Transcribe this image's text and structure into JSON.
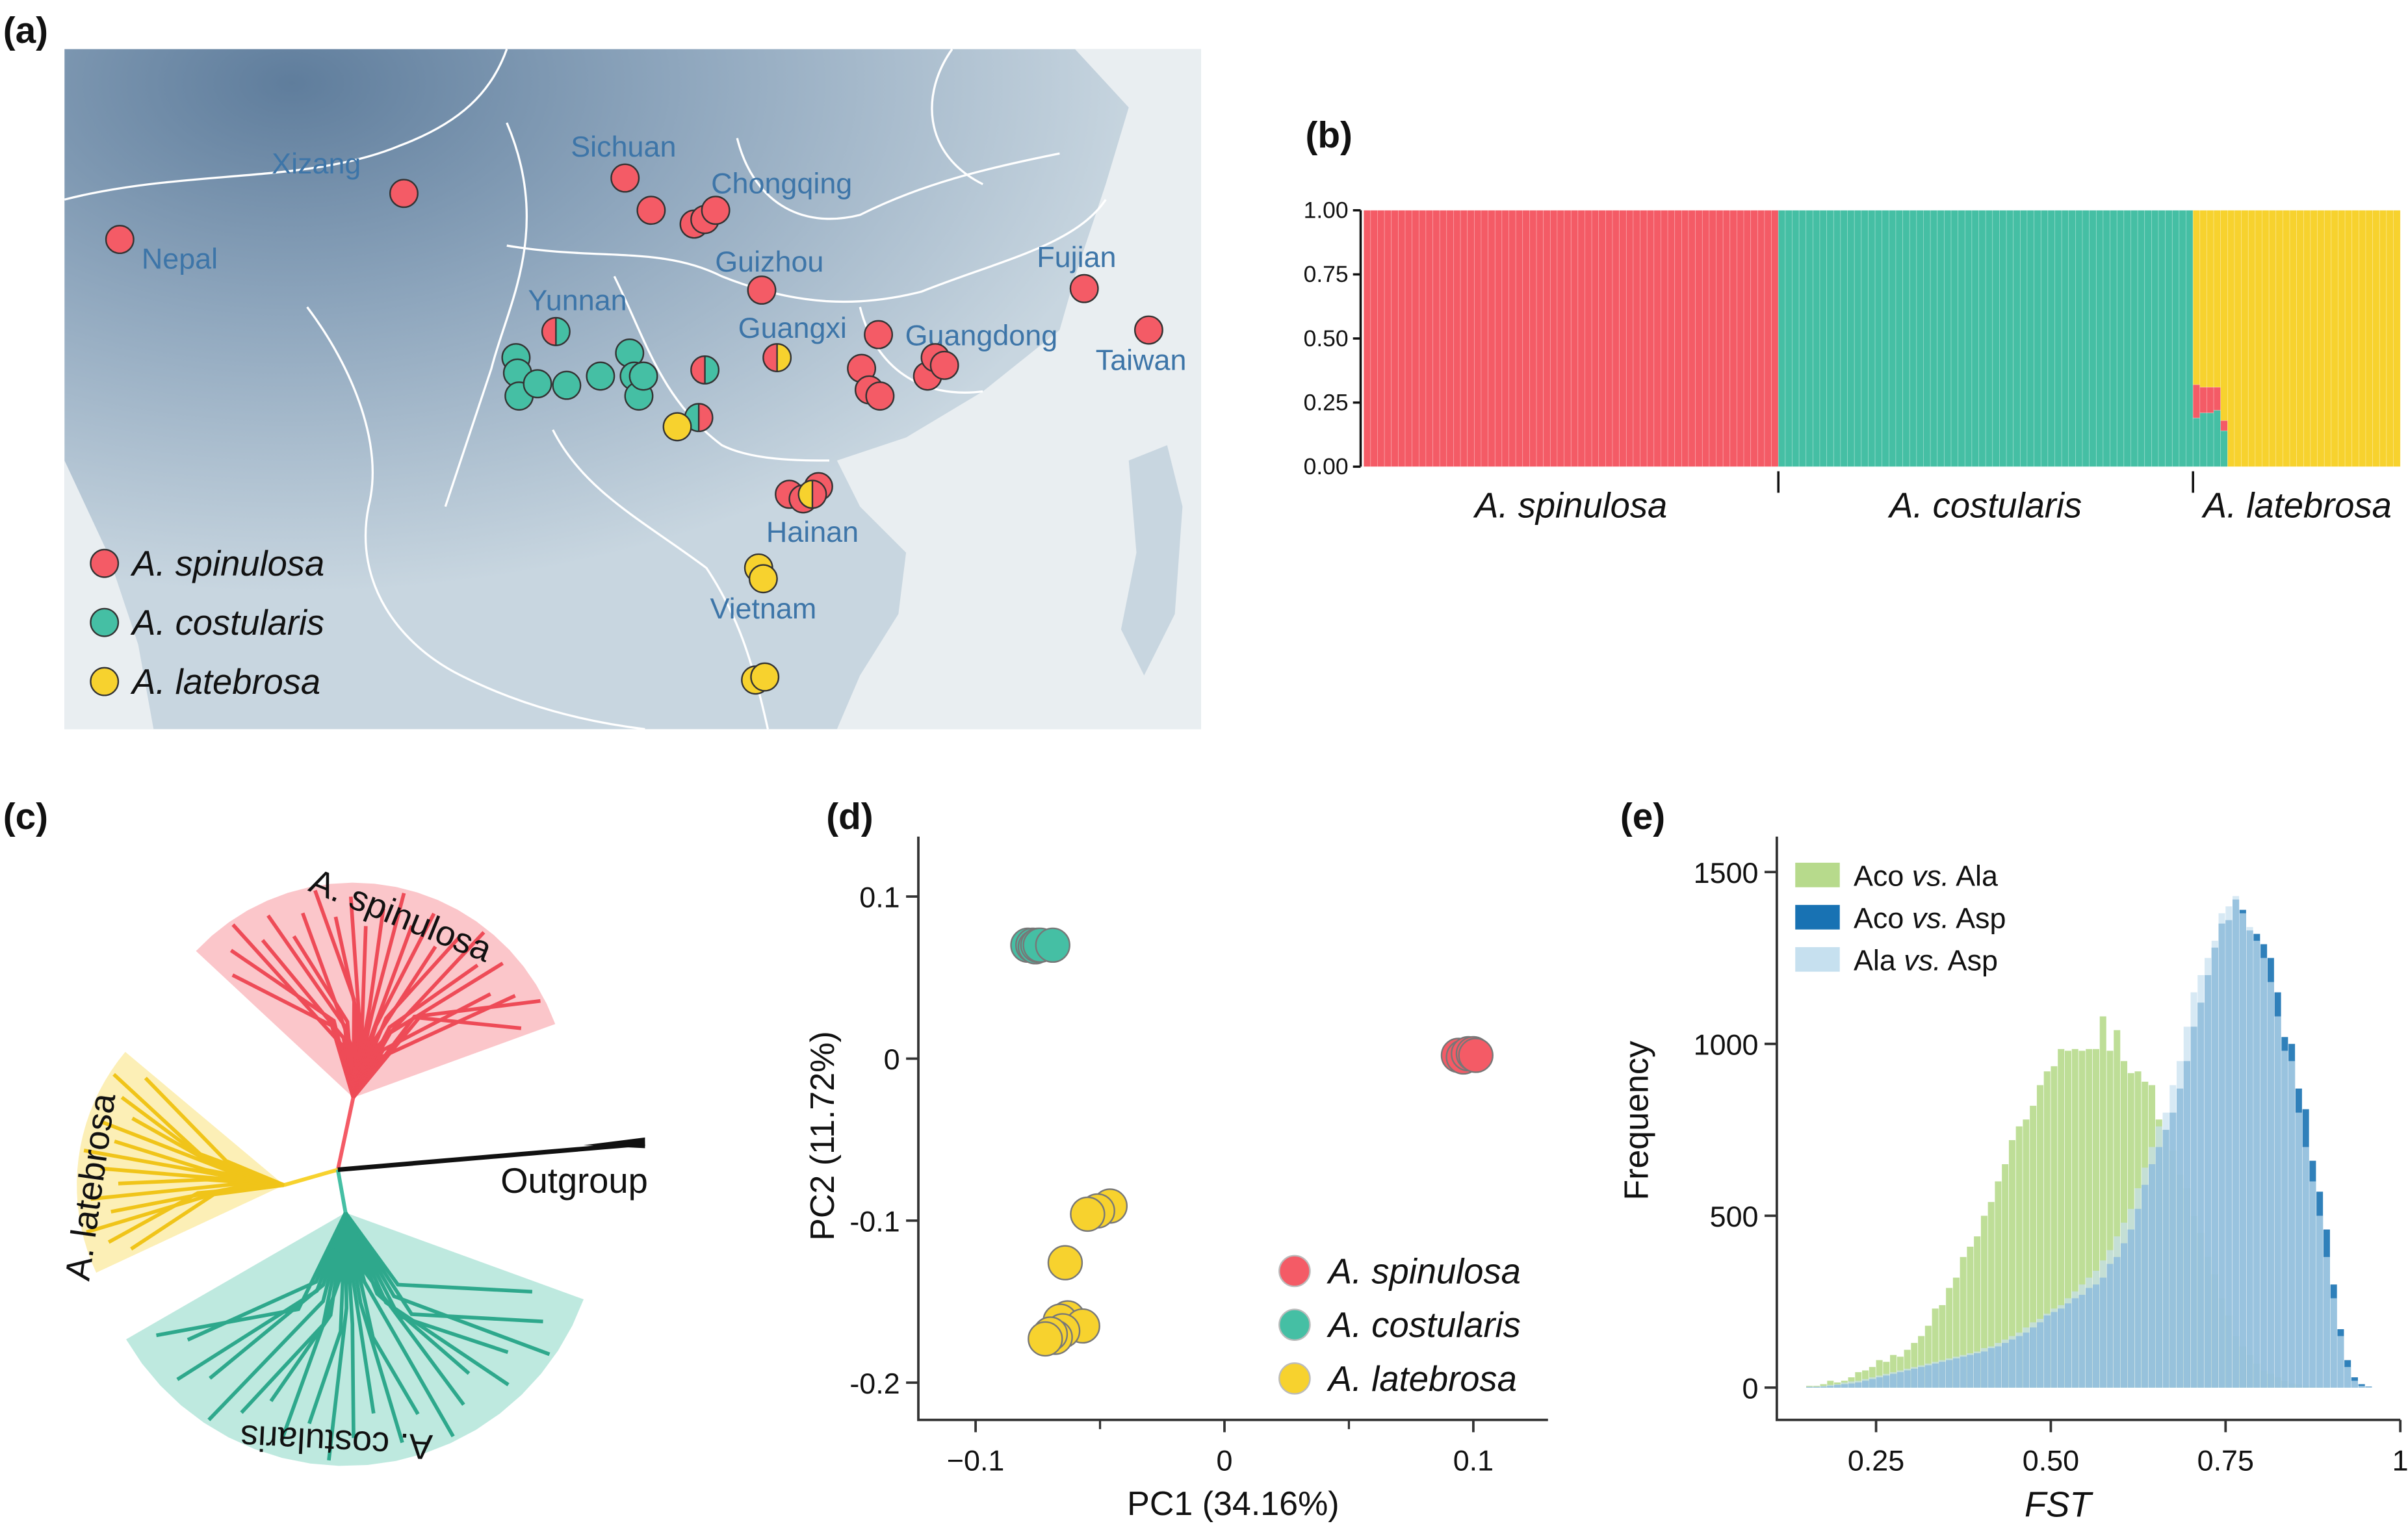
{
  "panel_labels": [
    "(a)",
    "(b)",
    "(c)",
    "(d)",
    "(e)"
  ],
  "colors": {
    "spinulosa": "#f45b66",
    "costularis": "#45bfa4",
    "latebrosa": "#f7d22e",
    "region_label": "#3d75a8"
  },
  "species": [
    "A. spinulosa",
    "A. costularis",
    "A. latebrosa"
  ],
  "map": {
    "regions": [
      "Xizang",
      "Nepal",
      "Sichuan",
      "Chongqing",
      "Guizhou",
      "Yunnan",
      "Guangxi",
      "Guangdong",
      "Fujian",
      "Taiwan",
      "Hainan",
      "Vietnam"
    ],
    "legend": [
      "A. spinulosa",
      "A. costularis",
      "A. latebrosa"
    ]
  },
  "tree": {
    "clades": [
      "A. spinulosa",
      "A. latebrosa",
      "A. costularis"
    ],
    "outgroup": "Outgroup"
  },
  "chart_data": [
    {
      "panel": "(b)",
      "type": "bar",
      "stacked": true,
      "ylim": [
        0,
        1
      ],
      "yticks": [
        "0.00",
        "0.25",
        "0.50",
        "0.75",
        "1.00"
      ],
      "groups": [
        {
          "name": "A. spinulosa",
          "n": 60,
          "cluster": "spinulosa"
        },
        {
          "name": "A. costularis",
          "n": 60,
          "cluster": "costularis"
        },
        {
          "name": "A. latebrosa",
          "n": 30,
          "cluster": "latebrosa"
        }
      ],
      "admixed": [
        {
          "group": "A. latebrosa",
          "index": 0,
          "costularis": 0.19,
          "spinulosa": 0.13,
          "latebrosa": 0.68
        },
        {
          "group": "A. latebrosa",
          "index": 1,
          "costularis": 0.21,
          "spinulosa": 0.1,
          "latebrosa": 0.69
        },
        {
          "group": "A. latebrosa",
          "index": 2,
          "costularis": 0.21,
          "spinulosa": 0.1,
          "latebrosa": 0.69
        },
        {
          "group": "A. latebrosa",
          "index": 3,
          "costularis": 0.22,
          "spinulosa": 0.09,
          "latebrosa": 0.69
        },
        {
          "group": "A. latebrosa",
          "index": 4,
          "costularis": 0.14,
          "spinulosa": 0.04,
          "latebrosa": 0.82
        }
      ]
    },
    {
      "panel": "(d)",
      "type": "scatter",
      "xlabel": "PC1 (34.16%)",
      "ylabel": "PC2 (11.72%)",
      "xlim": [
        -0.123,
        0.13
      ],
      "ylim": [
        -0.223,
        0.137
      ],
      "xticks": [
        "−0.1",
        "0",
        "0.1"
      ],
      "xtick_values": [
        -0.1,
        0,
        0.1
      ],
      "yticks": [
        "0.1",
        "0",
        "-0.1",
        "-0.2"
      ],
      "ytick_values": [
        0.1,
        0,
        -0.1,
        -0.2
      ],
      "legend_position": "bottom-right",
      "series": [
        {
          "name": "A. spinulosa",
          "points": [
            [
              0.094,
              0.002
            ],
            [
              0.096,
              0.001
            ],
            [
              0.098,
              0.003
            ],
            [
              0.1,
              0.003
            ],
            [
              0.101,
              0.002
            ]
          ]
        },
        {
          "name": "A. costularis",
          "points": [
            [
              -0.079,
              0.07
            ],
            [
              -0.077,
              0.07
            ],
            [
              -0.076,
              0.069
            ],
            [
              -0.075,
              0.07
            ],
            [
              -0.074,
              0.07
            ],
            [
              -0.069,
              0.07
            ]
          ]
        },
        {
          "name": "A. latebrosa",
          "points": [
            [
              -0.046,
              -0.091
            ],
            [
              -0.051,
              -0.094
            ],
            [
              -0.055,
              -0.096
            ],
            [
              -0.064,
              -0.126
            ],
            [
              -0.063,
              -0.16
            ],
            [
              -0.066,
              -0.162
            ],
            [
              -0.057,
              -0.165
            ],
            [
              -0.065,
              -0.168
            ],
            [
              -0.068,
              -0.172
            ],
            [
              -0.07,
              -0.17
            ],
            [
              -0.072,
              -0.173
            ]
          ]
        }
      ]
    },
    {
      "panel": "(e)",
      "type": "bar",
      "subtype": "overlaid-histogram",
      "xlabel": "FST",
      "ylabel": "Frequency",
      "xlim": [
        0.108,
        1.0
      ],
      "ylim": [
        -94,
        1603
      ],
      "xticks": [
        "0.25",
        "0.50",
        "0.75",
        "1"
      ],
      "xtick_values": [
        0.25,
        0.5,
        0.75,
        1.0
      ],
      "yticks": [
        "0",
        "500",
        "1000",
        "1500"
      ],
      "ytick_values": [
        0,
        500,
        1000,
        1500
      ],
      "bin_start": 0.15,
      "bin_width": 0.01,
      "legend_position": "top-left",
      "series": [
        {
          "name": "Aco vs. Ala",
          "color": "#b7da8c",
          "values": [
            5,
            5,
            10,
            20,
            15,
            20,
            30,
            45,
            50,
            60,
            80,
            75,
            95,
            90,
            110,
            130,
            150,
            180,
            230,
            240,
            290,
            320,
            380,
            410,
            440,
            500,
            540,
            600,
            650,
            720,
            760,
            780,
            820,
            880,
            920,
            935,
            985,
            980,
            985,
            980,
            985,
            985,
            1080,
            980,
            1040,
            950,
            915,
            920,
            890,
            880,
            780,
            750,
            690,
            620,
            580,
            500,
            450,
            380,
            330,
            260,
            210,
            150,
            120,
            95,
            70,
            50,
            40,
            30,
            20,
            12,
            8,
            5,
            3,
            2,
            1,
            0,
            0,
            0,
            0,
            0,
            0,
            0,
            0
          ]
        },
        {
          "name": "Aco vs. Asp",
          "color": "#1872b3",
          "values": [
            2,
            2,
            3,
            5,
            8,
            10,
            12,
            15,
            20,
            25,
            30,
            35,
            40,
            45,
            50,
            55,
            60,
            65,
            70,
            75,
            80,
            85,
            90,
            95,
            100,
            105,
            115,
            120,
            130,
            140,
            150,
            160,
            175,
            190,
            210,
            220,
            230,
            245,
            260,
            270,
            290,
            300,
            320,
            360,
            380,
            420,
            460,
            520,
            590,
            650,
            700,
            750,
            800,
            870,
            950,
            1050,
            1120,
            1200,
            1280,
            1350,
            1360,
            1420,
            1390,
            1330,
            1320,
            1290,
            1250,
            1150,
            1020,
            1000,
            870,
            810,
            660,
            570,
            460,
            300,
            170,
            80,
            30,
            10,
            3,
            0,
            0
          ]
        },
        {
          "name": "Ala vs. Asp",
          "color": "#c6e0ef",
          "values": [
            3,
            3,
            5,
            8,
            10,
            15,
            18,
            20,
            25,
            30,
            35,
            40,
            45,
            50,
            55,
            60,
            65,
            70,
            75,
            80,
            85,
            90,
            95,
            100,
            105,
            115,
            120,
            130,
            140,
            150,
            160,
            175,
            190,
            200,
            215,
            230,
            240,
            260,
            280,
            300,
            320,
            340,
            370,
            400,
            440,
            480,
            520,
            580,
            640,
            700,
            760,
            800,
            880,
            950,
            1050,
            1150,
            1200,
            1250,
            1300,
            1380,
            1400,
            1430,
            1380,
            1340,
            1300,
            1250,
            1180,
            1080,
            980,
            950,
            800,
            700,
            600,
            500,
            380,
            260,
            150,
            60,
            20,
            5,
            2,
            0,
            0
          ]
        }
      ]
    }
  ]
}
